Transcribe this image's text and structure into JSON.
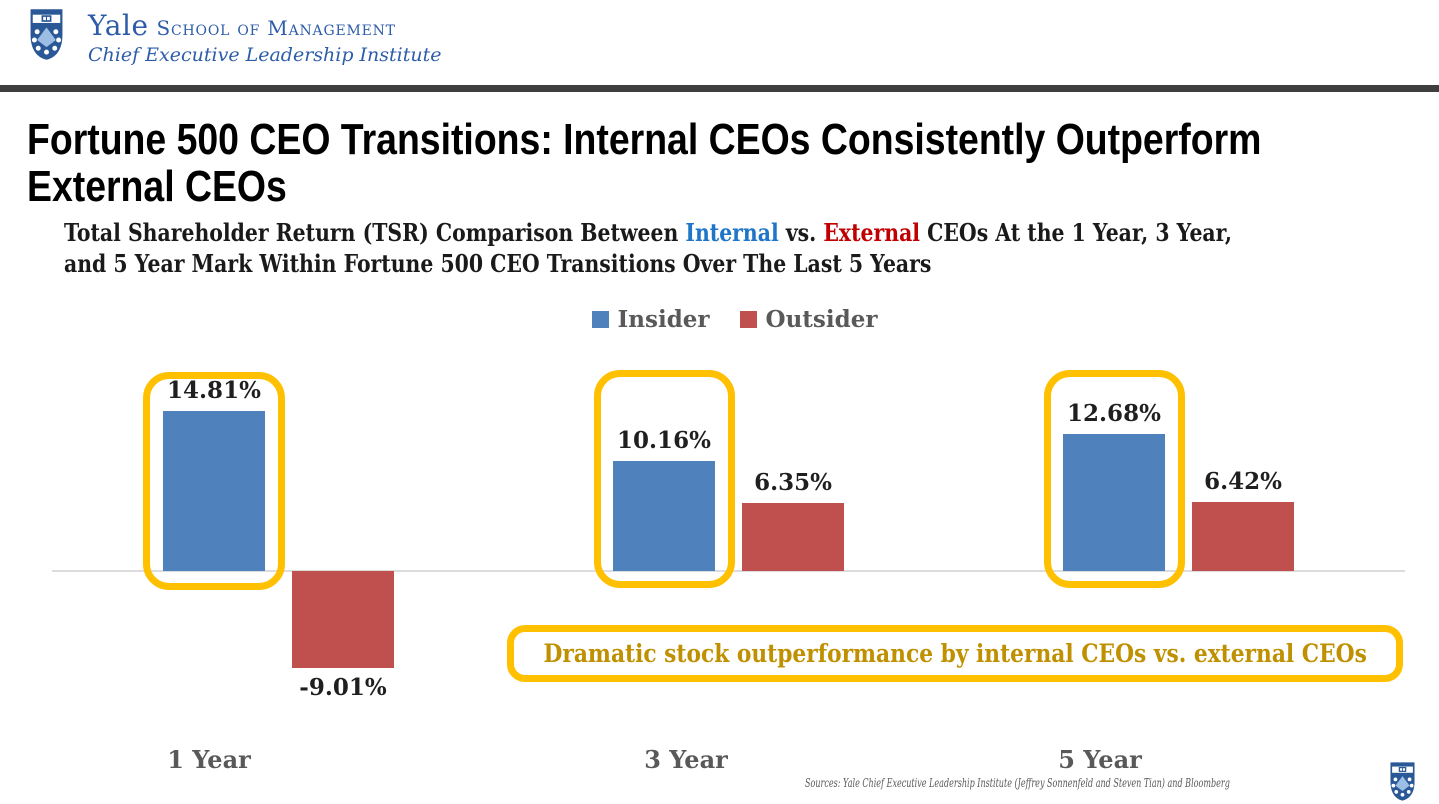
{
  "header": {
    "wordmark": "Yale",
    "school": "School of Management",
    "institute": "Chief Executive Leadership Institute"
  },
  "title": {
    "line1": "Fortune 500 CEO Transitions: Internal CEOs Consistently Outperform",
    "line2": "External CEOs"
  },
  "subtitle": {
    "part1": "Total Shareholder Return (TSR) Comparison Between ",
    "internal": "Internal",
    "part2": " vs. ",
    "external": "External",
    "part3": " CEOs At the 1 Year, 3 Year,",
    "line2": "and 5 Year Mark Within Fortune 500 CEO Transitions Over The Last 5 Years"
  },
  "callout": {
    "text": "Dramatic stock outperformance by internal CEOs vs. external CEOs"
  },
  "footer": {
    "sources": "Sources: Yale Chief Executive Leadership Institute (Jeffrey Sonnenfeld and Steven Tian) and Bloomberg"
  },
  "colors": {
    "insider_blue": "#4F81BD",
    "outsider_red": "#C0504D",
    "highlight_yellow": "#FFC000",
    "callout_gold": "#BF9000",
    "internal_text_blue": "#1F76C8",
    "external_text_red": "#C00000",
    "yale_blue": "#2D5DA8"
  },
  "chart_data": {
    "type": "bar",
    "title": "Total Shareholder Return (TSR) Comparison Between Internal vs. External CEOs At the 1 Year, 3 Year, and 5 Year Mark Within Fortune 500 CEO Transitions Over The Last 5 Years",
    "categories": [
      "1 Year",
      "3 Year",
      "5 Year"
    ],
    "series": [
      {
        "name": "Insider",
        "color": "#4F81BD",
        "values": [
          14.81,
          10.16,
          12.68
        ],
        "labels": [
          "14.81%",
          "10.16%",
          "12.68%"
        ]
      },
      {
        "name": "Outsider",
        "color": "#C0504D",
        "values": [
          -9.01,
          6.35,
          6.42
        ],
        "labels": [
          "-9.01%",
          "6.35%",
          "6.42%"
        ]
      }
    ],
    "xlabel": "",
    "ylabel": "",
    "ylim": [
      -12,
      17
    ],
    "grid": false,
    "axis_labels_visible": false,
    "legend_position": "top-center",
    "highlighted_series": "Insider",
    "highlight_color": "#FFC000",
    "annotation": "Dramatic stock outperformance by internal CEOs vs. external CEOs"
  }
}
